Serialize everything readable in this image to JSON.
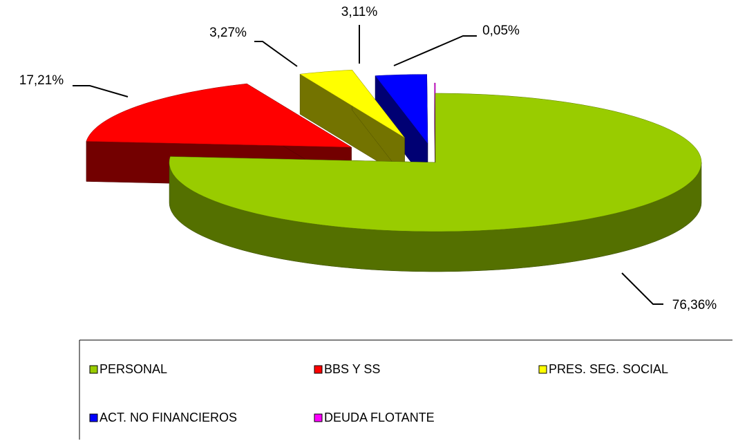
{
  "chart_data": {
    "type": "pie3d",
    "categories": [
      "PERSONAL",
      "BBS Y SS",
      "PRES. SEG. SOCIAL",
      "ACT. NO FINANCIEROS",
      "DEUDA FLOTANTE"
    ],
    "values": [
      76.36,
      17.21,
      3.27,
      3.11,
      0.05
    ],
    "value_labels": [
      "76,36%",
      "17,21%",
      "3,27%",
      "3,11%",
      "0,05%"
    ],
    "colors": [
      "#99cc00",
      "#ff0000",
      "#ffff00",
      "#0000ff",
      "#ff00ff"
    ],
    "legend": "bottom"
  }
}
